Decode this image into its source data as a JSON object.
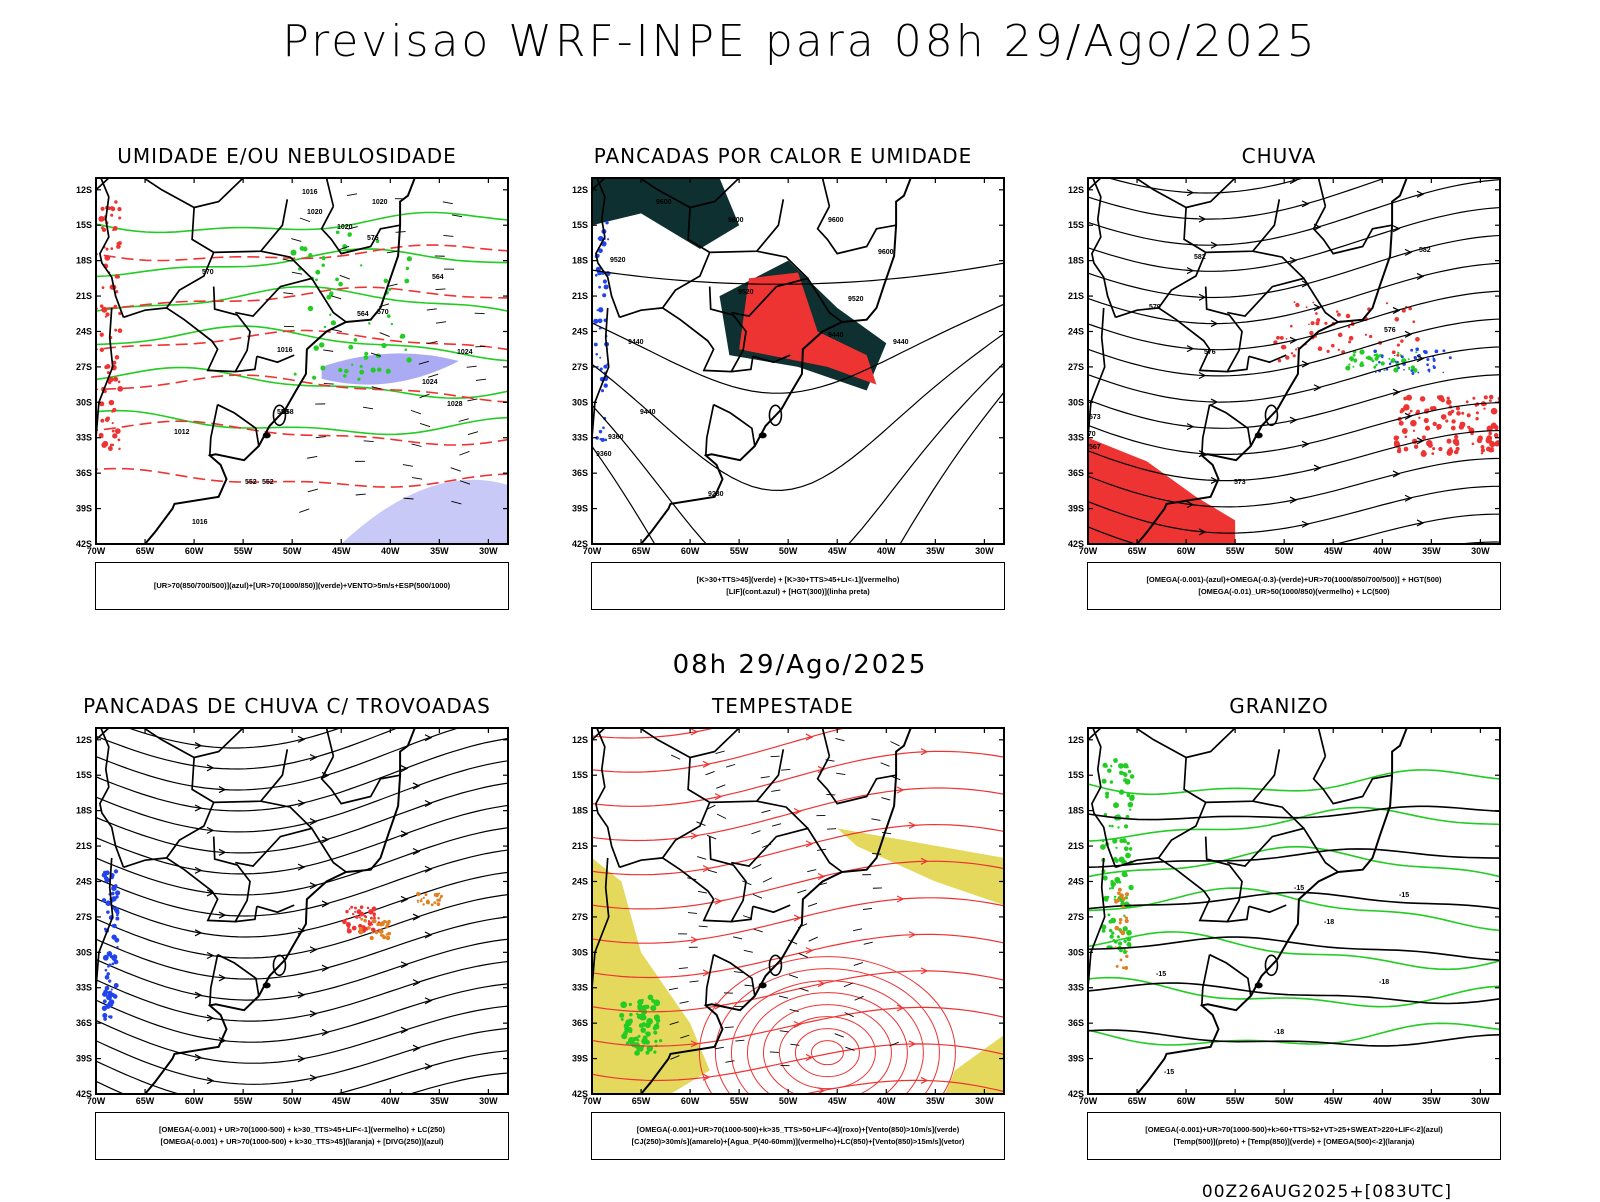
{
  "header": {
    "title": "Previsao WRF-INPE  para 08h 29/Ago/2025",
    "subtitle": "08h 29/Ago/2025",
    "footer": "00Z26AUG2025+[083UTC]"
  },
  "axes": {
    "lat_ticks": [
      "12S",
      "15S",
      "18S",
      "21S",
      "24S",
      "27S",
      "30S",
      "33S",
      "36S",
      "39S",
      "42S"
    ],
    "lon_ticks": [
      "70W",
      "65W",
      "60W",
      "55W",
      "50W",
      "45W",
      "40W",
      "35W",
      "30W"
    ]
  },
  "colors": {
    "green": "#22cc22",
    "red": "#ee3333",
    "blue": "#2244ee",
    "dark": "#0f3030",
    "yellow": "#ddd033",
    "purple": "#8888ee",
    "orange": "#e08020"
  },
  "panels": [
    {
      "id": "umidade",
      "title": "UMIDADE E/OU NEBULOSIDADE",
      "legend": [
        "[UR>70(850/700/500)](azul)+[UR>70(1000/850)](verde)+VENTO>5m/s+ESP(500/1000)"
      ],
      "contour_labels": [
        "1020",
        "1016",
        "1020",
        "1020",
        "1024",
        "1024",
        "1028",
        "1016",
        "1012",
        "1016",
        "570",
        "564",
        "558",
        "552",
        "570",
        "564",
        "558",
        "552",
        "576"
      ]
    },
    {
      "id": "pancadas-calor",
      "title": "PANCADAS POR CALOR E UMIDADE",
      "legend": [
        "[K>30+TTS>45](verde) + [K>30+TTS>45+LI<-1](vermelho)",
        "[LIF](cont.azul) + [HGT(300)](linha preta)"
      ],
      "contour_labels": [
        "9600",
        "9600",
        "9600",
        "9600",
        "9520",
        "9520",
        "9520",
        "9440",
        "9440",
        "9440",
        "9440",
        "9360",
        "9360",
        "9280"
      ]
    },
    {
      "id": "chuva",
      "title": "CHUVA",
      "legend": [
        "[OMEGA(-0.001)-(azul)+OMEGA(-0.3)-(verde)+UR>70(1000/850/700/500)] + HGT(500)",
        "[OMEGA(-0.01)_UR>50(1000/850)(vermelho) + LC(500)"
      ],
      "contour_labels": [
        "582",
        "582",
        "579",
        "576",
        "576",
        "573",
        "573",
        "570",
        "567"
      ]
    },
    {
      "id": "trovoadas",
      "title": "PANCADAS DE CHUVA C/ TROVOADAS",
      "legend": [
        "[OMEGA(-0.001) + UR>70(1000-500) + k>30_TTS>45+LIF<-1](vermelho) + LC(250)",
        "[OMEGA(-0.001) + UR>70(1000-500) + k>30_TTS>45](laranja) + [DIVG(250)](azul)"
      ],
      "contour_labels": []
    },
    {
      "id": "tempestade",
      "title": "TEMPESTADE",
      "legend": [
        "[OMEGA(-0.001)+UR>70(1000-500)+k>35_TTS>50+LIF<-4](roxo)+[Vento(850)>10m/s](verde)",
        "[CJ(250)>30m/s](amarelo)+[Agua_P(40-60mm)](vermelho)+LC(850)+[Vento(850)>15m/s](vetor)"
      ],
      "contour_labels": []
    },
    {
      "id": "granizo",
      "title": "GRANIZO",
      "legend": [
        "[OMEGA(-0.001)+UR>70(1000-500)+k>60+TTS>52+VT>25+SWEAT>220+LIF<-2](azul)",
        "[Temp(500)](preto) + [Temp(850)](verde) + [OMEGA(500)<-2](laranja)"
      ],
      "contour_labels": [
        "-15",
        "-15",
        "-18",
        "-15",
        "-18",
        "-15",
        "-18"
      ]
    }
  ]
}
